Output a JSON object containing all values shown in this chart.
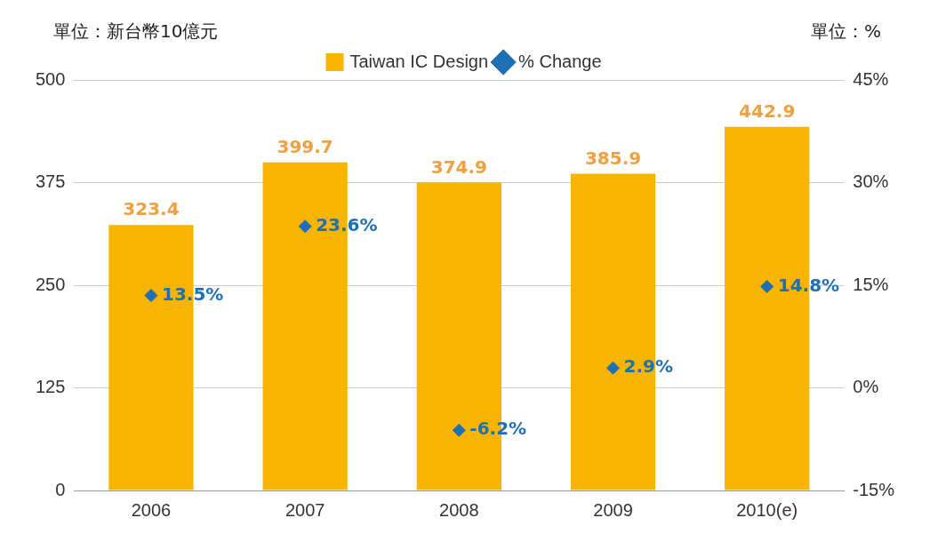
{
  "chart_data": {
    "type": "bar",
    "ylabel": "單位：新台幣10億元",
    "y2label": "單位：%",
    "categories": [
      "2006",
      "2007",
      "2008",
      "2009",
      "2010(e)"
    ],
    "series": [
      {
        "name": "Taiwan IC Design",
        "color": "#f7b500",
        "values": [
          323.4,
          399.7,
          374.9,
          385.9,
          442.9
        ],
        "value_labels": [
          "323.4",
          "399.7",
          "374.9",
          "385.9",
          "442.9"
        ]
      },
      {
        "name": "% Change",
        "type": "scatter",
        "axis": "y2",
        "color": "#1f6fb5",
        "values": [
          13.5,
          23.6,
          -6.2,
          2.9,
          14.8
        ],
        "value_labels": [
          "13.5%",
          "23.6%",
          "-6.2%",
          "2.9%",
          "14.8%"
        ]
      }
    ],
    "ylim": [
      0,
      500
    ],
    "yticks": [
      0,
      125,
      250,
      375,
      500
    ],
    "y2lim": [
      -15,
      45
    ],
    "y2ticks": [
      {
        "value": -15,
        "label": "-15%"
      },
      {
        "value": 0,
        "label": "0%"
      },
      {
        "value": 15,
        "label": "15%"
      },
      {
        "value": 30,
        "label": "30%"
      },
      {
        "value": 45,
        "label": "45%"
      }
    ],
    "grid": "y",
    "legend": "top",
    "marker": "diamond"
  }
}
